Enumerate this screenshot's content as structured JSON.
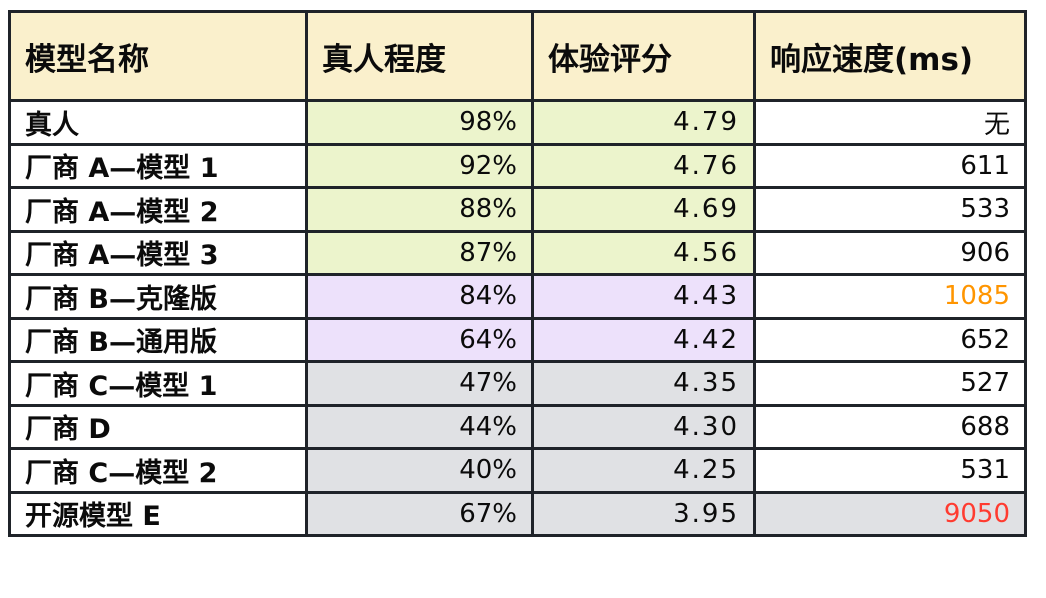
{
  "chart_data": {
    "type": "table",
    "columns": [
      "模型名称",
      "真人程度",
      "体验评分",
      "响应速度(ms)"
    ],
    "rows": [
      {
        "model": "真人",
        "human_likeness": "98%",
        "experience_score": "4.79",
        "response_ms": "无",
        "tone": "green",
        "response_text_color": "default",
        "response_bg": "white"
      },
      {
        "model": "厂商 A—模型 1",
        "human_likeness": "92%",
        "experience_score": "4.76",
        "response_ms": "611",
        "tone": "green",
        "response_text_color": "default",
        "response_bg": "white"
      },
      {
        "model": "厂商 A—模型 2",
        "human_likeness": "88%",
        "experience_score": "4.69",
        "response_ms": "533",
        "tone": "green",
        "response_text_color": "default",
        "response_bg": "white"
      },
      {
        "model": "厂商 A—模型 3",
        "human_likeness": "87%",
        "experience_score": "4.56",
        "response_ms": "906",
        "tone": "green",
        "response_text_color": "default",
        "response_bg": "white"
      },
      {
        "model": "厂商 B—克隆版",
        "human_likeness": "84%",
        "experience_score": "4.43",
        "response_ms": "1085",
        "tone": "purple",
        "response_text_color": "orange",
        "response_bg": "white"
      },
      {
        "model": "厂商 B—通用版",
        "human_likeness": "64%",
        "experience_score": "4.42",
        "response_ms": "652",
        "tone": "purple",
        "response_text_color": "default",
        "response_bg": "white"
      },
      {
        "model": "厂商 C—模型 1",
        "human_likeness": "47%",
        "experience_score": "4.35",
        "response_ms": "527",
        "tone": "gray",
        "response_text_color": "default",
        "response_bg": "white"
      },
      {
        "model": "厂商 D",
        "human_likeness": "44%",
        "experience_score": "4.30",
        "response_ms": "688",
        "tone": "gray",
        "response_text_color": "default",
        "response_bg": "white"
      },
      {
        "model": "厂商 C—模型 2",
        "human_likeness": "40%",
        "experience_score": "4.25",
        "response_ms": "531",
        "tone": "gray",
        "response_text_color": "default",
        "response_bg": "white"
      },
      {
        "model": "开源模型 E",
        "human_likeness": "67%",
        "experience_score": "3.95",
        "response_ms": "9050",
        "tone": "gray",
        "response_text_color": "red",
        "response_bg": "gray"
      }
    ]
  },
  "colors": {
    "header_bg": "#faf0cc",
    "green_bg": "#ecf4cc",
    "purple_bg": "#ede1fb",
    "gray_bg": "#e0e1e4",
    "white_bg": "#ffffff",
    "border": "#1f2329",
    "text": "#0b0b0b",
    "orange_text": "#ff9500",
    "red_text": "#ff3b30"
  }
}
